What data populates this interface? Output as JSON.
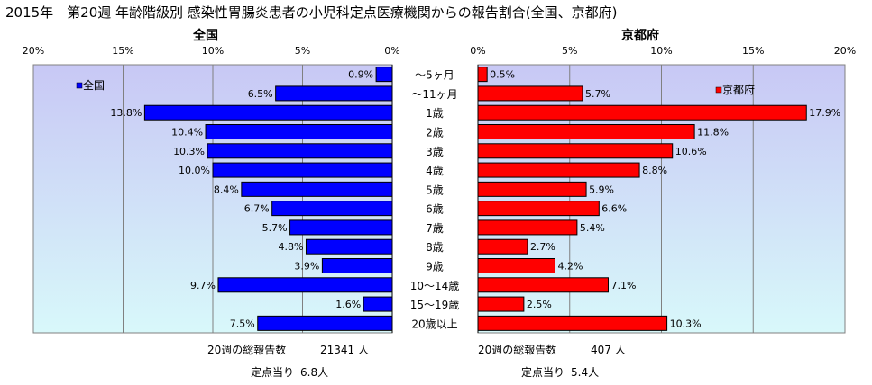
{
  "title": "2015年　第20週 年齢階級別 感染性胃腸炎患者の小児科定点医療機関からの報告割合(全国、京都府)",
  "colors": {
    "left_bar": "#0000ff",
    "right_bar": "#ff0000",
    "bar_stroke": "#000000",
    "plot_bg_top": "#c8c8f5",
    "plot_bg_bottom": "#d8f8fa",
    "grid": "#808080"
  },
  "chart_data": [
    {
      "type": "bar",
      "orientation": "horizontal",
      "direction": "right-to-left",
      "title": "全国",
      "xlim": [
        0,
        20
      ],
      "ticks": [
        "0%",
        "5%",
        "10%",
        "15%",
        "20%"
      ],
      "tick_values": [
        0,
        5,
        10,
        15,
        20
      ],
      "legend": "全国",
      "legend_position": "top-left",
      "grid": true,
      "categories": [
        "～5ヶ月",
        "～11ヶ月",
        "1歳",
        "2歳",
        "3歳",
        "4歳",
        "5歳",
        "6歳",
        "7歳",
        "8歳",
        "9歳",
        "10～14歳",
        "15～19歳",
        "20歳以上"
      ],
      "values": [
        0.9,
        6.5,
        13.8,
        10.4,
        10.3,
        10.0,
        8.4,
        6.7,
        5.7,
        4.8,
        3.9,
        9.7,
        1.6,
        7.5
      ],
      "labels": [
        "0.9%",
        "6.5%",
        "13.8%",
        "10.4%",
        "10.3%",
        "10.0%",
        "8.4%",
        "6.7%",
        "5.7%",
        "4.8%",
        "3.9%",
        "9.7%",
        "1.6%",
        "7.5%"
      ],
      "summary": {
        "total_label": "20週の総報告数",
        "total_value": "21341 人",
        "per_site_label": "定点当り",
        "per_site_value": "6.8人"
      }
    },
    {
      "type": "bar",
      "orientation": "horizontal",
      "direction": "left-to-right",
      "title": "京都府",
      "xlim": [
        0,
        20
      ],
      "ticks": [
        "0%",
        "5%",
        "10%",
        "15%",
        "20%"
      ],
      "tick_values": [
        0,
        5,
        10,
        15,
        20
      ],
      "legend": "京都府",
      "legend_position": "top-right",
      "grid": true,
      "categories": [
        "～5ヶ月",
        "～11ヶ月",
        "1歳",
        "2歳",
        "3歳",
        "4歳",
        "5歳",
        "6歳",
        "7歳",
        "8歳",
        "9歳",
        "10～14歳",
        "15～19歳",
        "20歳以上"
      ],
      "values": [
        0.5,
        5.7,
        17.9,
        11.8,
        10.6,
        8.8,
        5.9,
        6.6,
        5.4,
        2.7,
        4.2,
        7.1,
        2.5,
        10.3
      ],
      "labels": [
        "0.5%",
        "5.7%",
        "17.9%",
        "11.8%",
        "10.6%",
        "8.8%",
        "5.9%",
        "6.6%",
        "5.4%",
        "2.7%",
        "4.2%",
        "7.1%",
        "2.5%",
        "10.3%"
      ],
      "summary": {
        "total_label": "20週の総報告数",
        "total_value": "407 人",
        "per_site_label": "定点当り",
        "per_site_value": "5.4人"
      }
    }
  ]
}
